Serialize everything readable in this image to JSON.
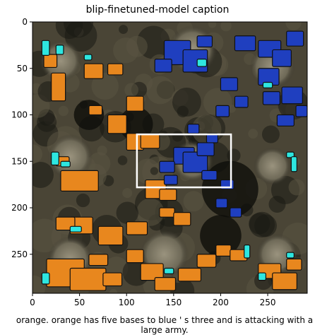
{
  "chart_data": {
    "type": "heatmap",
    "title": "blip-finetuned-model caption",
    "xlabel": "",
    "ylabel": "",
    "xlim": [
      0,
      292
    ],
    "ylim": [
      292,
      0
    ],
    "xticks": [
      0,
      50,
      100,
      150,
      200,
      250
    ],
    "yticks": [
      0,
      50,
      100,
      150,
      200,
      250
    ],
    "caption": "orange. orange has five bases to blue ' s three and is attacking with a large army.",
    "highlight_box": {
      "x0": 111,
      "y0": 121,
      "x1": 211,
      "y1": 178
    },
    "colors": {
      "orange": "#e8871e",
      "blue": "#1f3fbf",
      "cyan": "#2ee6e0",
      "terrain_dark": "#1a1a14",
      "terrain_mid": "#4a4536",
      "base_plate": "#8a8470",
      "highlight": "#ffffff"
    },
    "bases": [
      {
        "x": 30,
        "y": 42,
        "r": 22
      },
      {
        "x": 170,
        "y": 30,
        "r": 26
      },
      {
        "x": 255,
        "y": 48,
        "r": 24
      },
      {
        "x": 40,
        "y": 145,
        "r": 24
      },
      {
        "x": 170,
        "y": 150,
        "r": 22
      },
      {
        "x": 255,
        "y": 155,
        "r": 20
      },
      {
        "x": 40,
        "y": 255,
        "r": 24
      },
      {
        "x": 140,
        "y": 250,
        "r": 26
      },
      {
        "x": 260,
        "y": 250,
        "r": 22
      }
    ],
    "orange_blobs": [
      {
        "x": 20,
        "y": 55,
        "w": 15,
        "h": 30
      },
      {
        "x": 12,
        "y": 35,
        "w": 14,
        "h": 14
      },
      {
        "x": 55,
        "y": 45,
        "w": 20,
        "h": 16
      },
      {
        "x": 60,
        "y": 90,
        "w": 14,
        "h": 10
      },
      {
        "x": 80,
        "y": 45,
        "w": 16,
        "h": 12
      },
      {
        "x": 80,
        "y": 100,
        "w": 20,
        "h": 20
      },
      {
        "x": 100,
        "y": 80,
        "w": 18,
        "h": 16
      },
      {
        "x": 30,
        "y": 160,
        "w": 40,
        "h": 22
      },
      {
        "x": 25,
        "y": 145,
        "w": 14,
        "h": 10
      },
      {
        "x": 100,
        "y": 120,
        "w": 18,
        "h": 18
      },
      {
        "x": 115,
        "y": 120,
        "w": 20,
        "h": 16
      },
      {
        "x": 120,
        "y": 170,
        "w": 22,
        "h": 20
      },
      {
        "x": 135,
        "y": 180,
        "w": 18,
        "h": 12
      },
      {
        "x": 135,
        "y": 200,
        "w": 16,
        "h": 10
      },
      {
        "x": 150,
        "y": 205,
        "w": 18,
        "h": 14
      },
      {
        "x": 40,
        "y": 210,
        "w": 24,
        "h": 18
      },
      {
        "x": 25,
        "y": 210,
        "w": 20,
        "h": 14
      },
      {
        "x": 70,
        "y": 220,
        "w": 26,
        "h": 20
      },
      {
        "x": 100,
        "y": 215,
        "w": 22,
        "h": 14
      },
      {
        "x": 60,
        "y": 250,
        "w": 20,
        "h": 12
      },
      {
        "x": 15,
        "y": 255,
        "w": 40,
        "h": 30
      },
      {
        "x": 40,
        "y": 265,
        "w": 38,
        "h": 24
      },
      {
        "x": 75,
        "y": 270,
        "w": 20,
        "h": 14
      },
      {
        "x": 100,
        "y": 245,
        "w": 18,
        "h": 14
      },
      {
        "x": 115,
        "y": 260,
        "w": 24,
        "h": 18
      },
      {
        "x": 130,
        "y": 275,
        "w": 22,
        "h": 14
      },
      {
        "x": 155,
        "y": 265,
        "w": 24,
        "h": 14
      },
      {
        "x": 175,
        "y": 250,
        "w": 20,
        "h": 14
      },
      {
        "x": 195,
        "y": 240,
        "w": 16,
        "h": 12
      },
      {
        "x": 210,
        "y": 245,
        "w": 18,
        "h": 12
      },
      {
        "x": 240,
        "y": 260,
        "w": 24,
        "h": 16
      },
      {
        "x": 255,
        "y": 270,
        "w": 26,
        "h": 18
      },
      {
        "x": 270,
        "y": 255,
        "w": 16,
        "h": 12
      }
    ],
    "blue_blobs": [
      {
        "x": 140,
        "y": 20,
        "w": 28,
        "h": 26
      },
      {
        "x": 160,
        "y": 30,
        "w": 26,
        "h": 24
      },
      {
        "x": 130,
        "y": 40,
        "w": 18,
        "h": 14
      },
      {
        "x": 175,
        "y": 15,
        "w": 16,
        "h": 12
      },
      {
        "x": 215,
        "y": 15,
        "w": 22,
        "h": 16
      },
      {
        "x": 240,
        "y": 20,
        "w": 24,
        "h": 18
      },
      {
        "x": 255,
        "y": 30,
        "w": 20,
        "h": 18
      },
      {
        "x": 270,
        "y": 10,
        "w": 18,
        "h": 16
      },
      {
        "x": 240,
        "y": 50,
        "w": 22,
        "h": 18
      },
      {
        "x": 245,
        "y": 75,
        "w": 18,
        "h": 14
      },
      {
        "x": 265,
        "y": 70,
        "w": 22,
        "h": 18
      },
      {
        "x": 280,
        "y": 90,
        "w": 12,
        "h": 12
      },
      {
        "x": 200,
        "y": 60,
        "w": 18,
        "h": 14
      },
      {
        "x": 215,
        "y": 80,
        "w": 14,
        "h": 12
      },
      {
        "x": 195,
        "y": 90,
        "w": 14,
        "h": 12
      },
      {
        "x": 260,
        "y": 100,
        "w": 18,
        "h": 12
      },
      {
        "x": 150,
        "y": 135,
        "w": 22,
        "h": 18
      },
      {
        "x": 160,
        "y": 140,
        "w": 26,
        "h": 22
      },
      {
        "x": 135,
        "y": 150,
        "w": 16,
        "h": 12
      },
      {
        "x": 175,
        "y": 130,
        "w": 18,
        "h": 14
      },
      {
        "x": 140,
        "y": 165,
        "w": 14,
        "h": 10
      },
      {
        "x": 180,
        "y": 160,
        "w": 16,
        "h": 10
      },
      {
        "x": 185,
        "y": 120,
        "w": 12,
        "h": 10
      },
      {
        "x": 200,
        "y": 170,
        "w": 14,
        "h": 10
      },
      {
        "x": 195,
        "y": 190,
        "w": 12,
        "h": 10
      },
      {
        "x": 210,
        "y": 200,
        "w": 12,
        "h": 10
      },
      {
        "x": 165,
        "y": 110,
        "w": 12,
        "h": 10
      }
    ],
    "cyan_blobs": [
      {
        "x": 10,
        "y": 20,
        "w": 8,
        "h": 16
      },
      {
        "x": 25,
        "y": 25,
        "w": 8,
        "h": 10
      },
      {
        "x": 55,
        "y": 35,
        "w": 8,
        "h": 6
      },
      {
        "x": 175,
        "y": 40,
        "w": 10,
        "h": 8
      },
      {
        "x": 245,
        "y": 65,
        "w": 10,
        "h": 6
      },
      {
        "x": 20,
        "y": 140,
        "w": 8,
        "h": 14
      },
      {
        "x": 30,
        "y": 150,
        "w": 10,
        "h": 6
      },
      {
        "x": 270,
        "y": 140,
        "w": 8,
        "h": 6
      },
      {
        "x": 275,
        "y": 145,
        "w": 6,
        "h": 16
      },
      {
        "x": 40,
        "y": 220,
        "w": 12,
        "h": 6
      },
      {
        "x": 10,
        "y": 270,
        "w": 8,
        "h": 12
      },
      {
        "x": 140,
        "y": 265,
        "w": 10,
        "h": 6
      },
      {
        "x": 225,
        "y": 240,
        "w": 6,
        "h": 14
      },
      {
        "x": 240,
        "y": 270,
        "w": 8,
        "h": 8
      },
      {
        "x": 270,
        "y": 248,
        "w": 8,
        "h": 6
      }
    ]
  }
}
